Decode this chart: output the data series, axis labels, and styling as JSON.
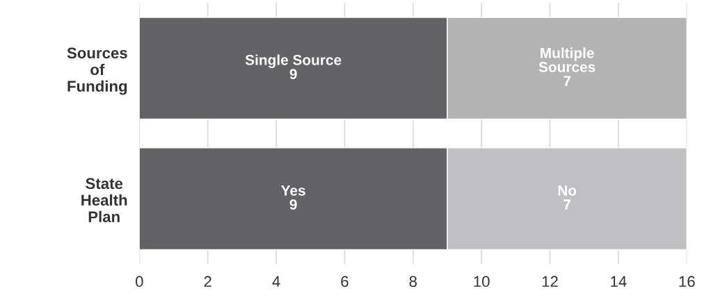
{
  "chart_data": {
    "type": "bar",
    "orientation": "horizontal",
    "stacked": true,
    "categories": [
      "Sources\nof\nFunding",
      "State\nHealth\nPlan"
    ],
    "series": [
      {
        "colors": [
          "#636366",
          "#636366"
        ],
        "values": [
          9,
          9
        ],
        "value_labels": [
          "Single Source\n9",
          "Yes\n9"
        ]
      },
      {
        "colors": [
          "#b3b3b3",
          "#c0c0c2"
        ],
        "values": [
          7,
          7
        ],
        "value_labels": [
          "Multiple\nSources\n7",
          "No\n7"
        ]
      }
    ],
    "xlim": [
      0,
      16
    ],
    "xticks": [
      0,
      2,
      4,
      6,
      8,
      10,
      12,
      14,
      16
    ],
    "grid": "x",
    "legend": false
  }
}
